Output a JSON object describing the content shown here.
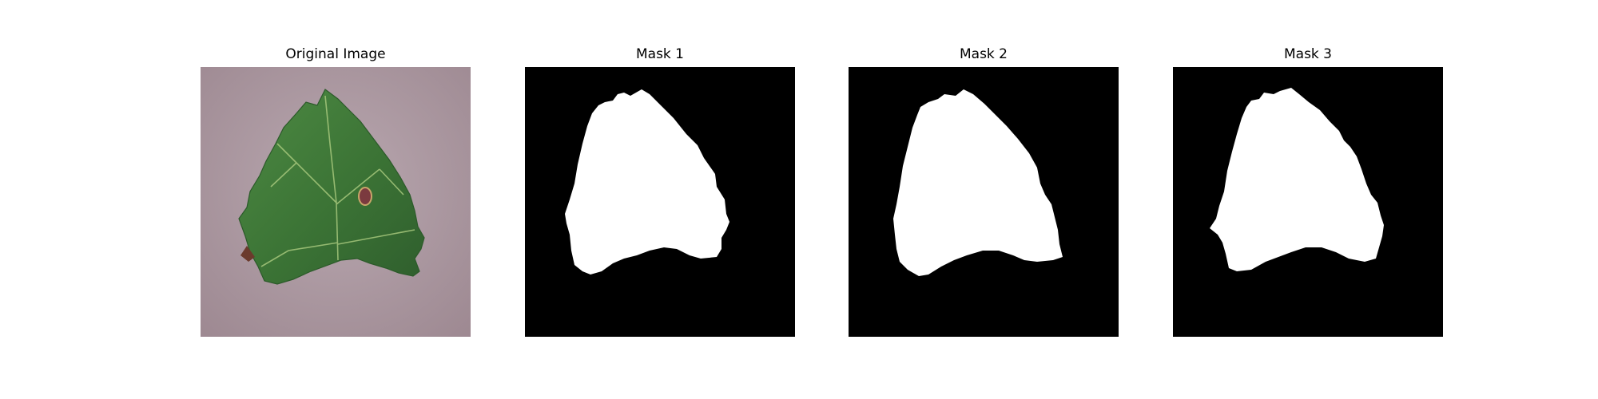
{
  "panels": [
    {
      "title": "Original Image",
      "kind": "photo"
    },
    {
      "title": "Mask 1",
      "kind": "mask"
    },
    {
      "title": "Mask 2",
      "kind": "mask"
    },
    {
      "title": "Mask 3",
      "kind": "mask"
    }
  ],
  "colors": {
    "background": "#ffffff",
    "mask_background": "#000000",
    "mask_foreground": "#ffffff",
    "leaf_green": "#3f7a3a",
    "table_surface": "#b3a0a8"
  }
}
